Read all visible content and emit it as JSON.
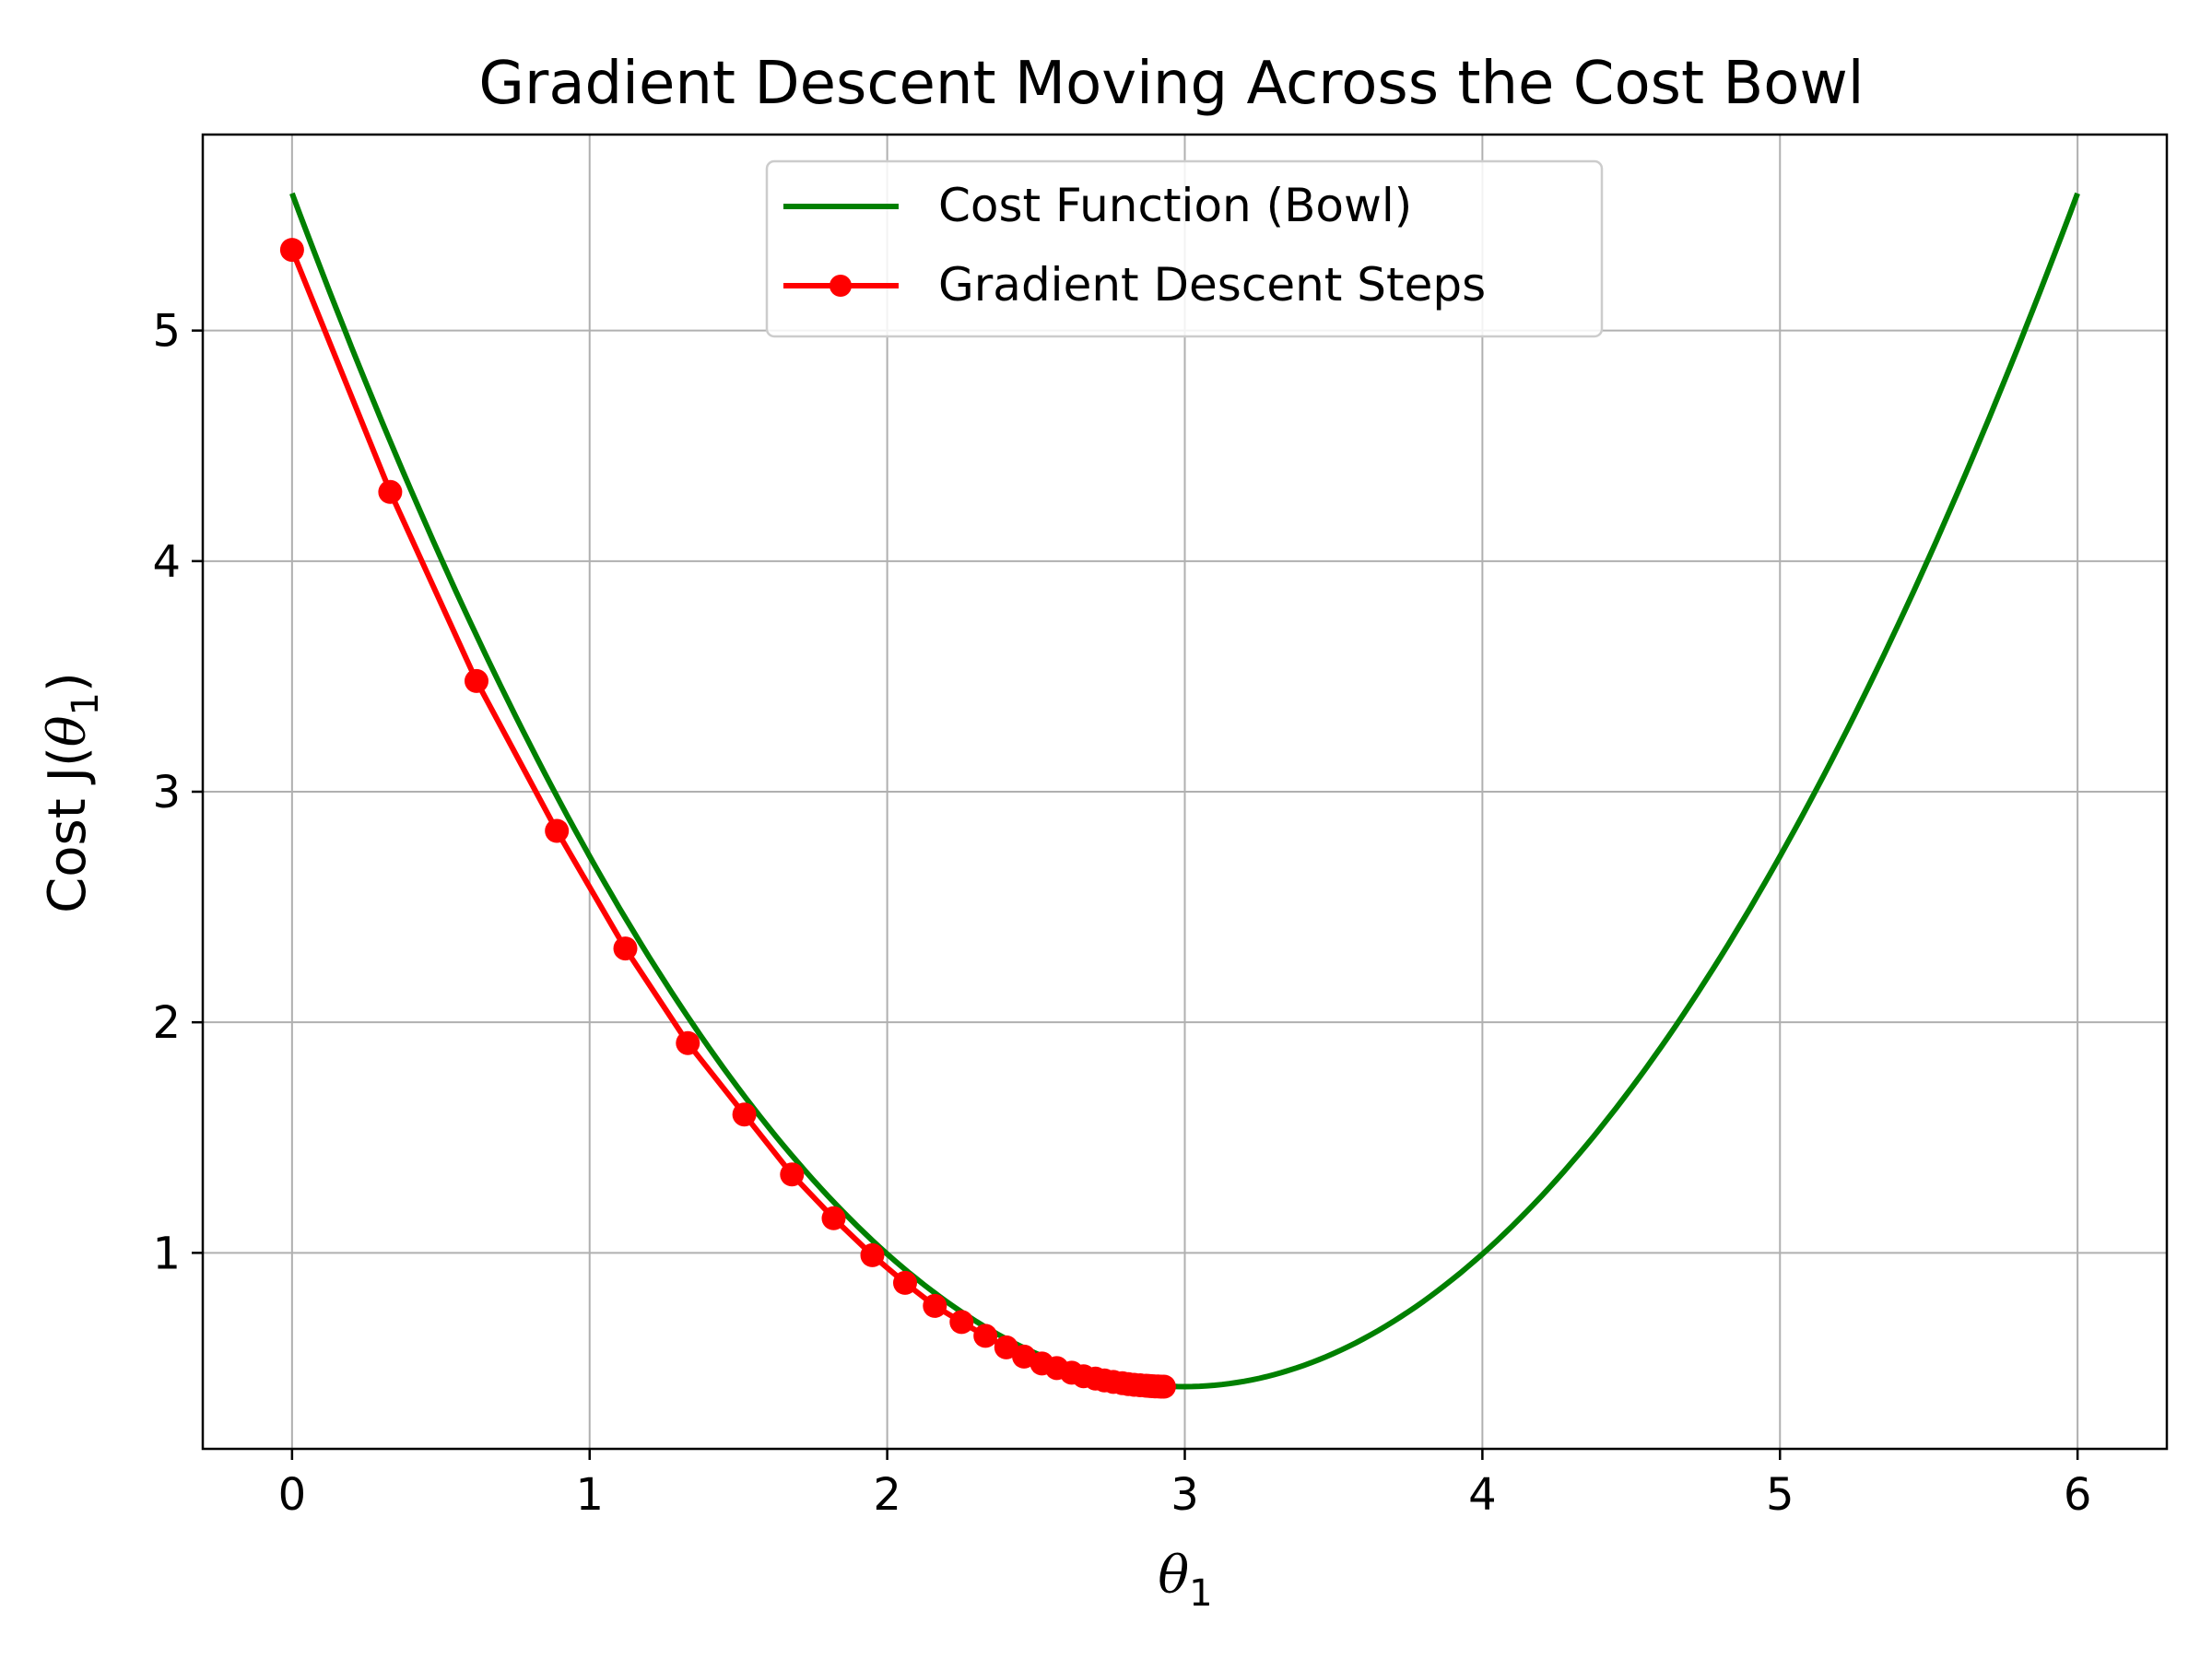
{
  "chart_data": {
    "type": "line",
    "title": "Gradient Descent Moving Across the Cost Bowl",
    "xlabel": {
      "prefix": "",
      "symbol": "θ",
      "sub": "1",
      "suffix": ""
    },
    "ylabel": {
      "prefix": "Cost J(",
      "symbol": "θ",
      "sub": "1",
      "suffix": ")"
    },
    "xlim": [
      -0.3,
      6.3
    ],
    "ylim": [
      0.15,
      5.85
    ],
    "xticks": [
      0,
      1,
      2,
      3,
      4,
      5,
      6
    ],
    "yticks": [
      1,
      2,
      3,
      4,
      5
    ],
    "grid": true,
    "legend_position": "top-center",
    "series": [
      {
        "name": "Cost Function (Bowl)",
        "color": "#008000",
        "marker": "none",
        "function": {
          "form": "quadratic",
          "min_x": 3.0,
          "min_y": 0.42,
          "curvature": 0.575
        },
        "x_range": [
          0,
          6
        ]
      },
      {
        "name": "Gradient Descent Steps",
        "color": "#ff0000",
        "marker": "circle",
        "x": [
          0,
          0.33,
          0.62,
          0.89,
          1.12,
          1.33,
          1.52,
          1.68,
          1.82,
          1.95,
          2.06,
          2.16,
          2.25,
          2.33,
          2.4,
          2.46,
          2.52,
          2.57,
          2.62,
          2.66,
          2.7,
          2.73,
          2.76,
          2.79,
          2.81,
          2.83,
          2.85,
          2.87,
          2.88,
          2.89,
          2.9,
          2.91,
          2.92,
          2.93
        ],
        "y": [
          5.35,
          4.3,
          3.48,
          2.83,
          2.32,
          1.91,
          1.6,
          1.34,
          1.15,
          0.99,
          0.87,
          0.77,
          0.7,
          0.64,
          0.59,
          0.55,
          0.52,
          0.5,
          0.48,
          0.465,
          0.455,
          0.447,
          0.44,
          0.435,
          0.431,
          0.428,
          0.426,
          0.424,
          0.423,
          0.422,
          0.421,
          0.421,
          0.42,
          0.42
        ]
      }
    ]
  }
}
